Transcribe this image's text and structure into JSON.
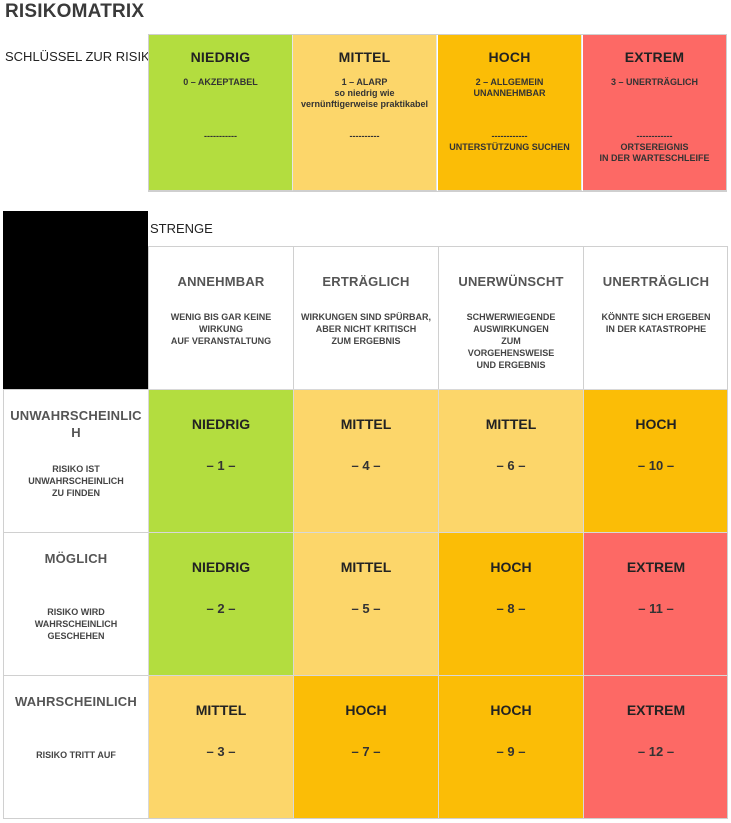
{
  "title": "RISIKOMATRIX",
  "key": {
    "label": "SCHLÜSSEL ZUR RISIKO",
    "levels": [
      {
        "name": "NIEDRIG",
        "desc": "0 – AKZEPTABEL",
        "extra": "-----------",
        "color": "#b3dd3f"
      },
      {
        "name": "MITTEL",
        "desc": "1 – ALARP\nso niedrig wie\nvernünftigerweise praktikabel",
        "extra": "----------",
        "color": "#fcd66a"
      },
      {
        "name": "HOCH",
        "desc": "2 – ALLGEMEIN\nUNANNEHMBAR",
        "extra": "------------\nUNTERSTÜTZUNG SUCHEN",
        "color": "#fbbd06"
      },
      {
        "name": "EXTREM",
        "desc": "3 – UNERTRÄGLICH",
        "extra": "------------\nORTSEREIGNIS\nIN DER WARTESCHLEIFE",
        "color": "#fd6965"
      }
    ]
  },
  "severity": {
    "label": "STRENGE",
    "columns": [
      {
        "name": "ANNEHMBAR",
        "desc": "WENIG BIS GAR KEINE\nWIRKUNG\nAUF VERANSTALTUNG"
      },
      {
        "name": "ERTRÄGLICH",
        "desc": "WIRKUNGEN SIND SPÜRBAR,\nABER NICHT KRITISCH\nZUM ERGEBNIS"
      },
      {
        "name": "UNERWÜNSCHT",
        "desc": "SCHWERWIEGENDE\nAUSWIRKUNGEN\nZUM\nVORGEHENSWEISE\nUND ERGEBNIS"
      },
      {
        "name": "UNERTRÄGLICH",
        "desc": "KÖNNTE SICH ERGEBEN\nIN DER KATASTROPHE"
      }
    ]
  },
  "likelihood": [
    {
      "name": "UNWAHRSCHEINLIC\nH",
      "desc": "RISIKO IST\nUNWAHRSCHEINLICH\nZU FINDEN",
      "cells": [
        {
          "level": "NIEDRIG",
          "num": "– 1 –",
          "color": "#b3dd3f"
        },
        {
          "level": "MITTEL",
          "num": "– 4 –",
          "color": "#fcd66a"
        },
        {
          "level": "MITTEL",
          "num": "– 6 –",
          "color": "#fcd66a"
        },
        {
          "level": "HOCH",
          "num": "– 10 –",
          "color": "#fbbd06"
        }
      ]
    },
    {
      "name": "MÖGLICH",
      "desc": "RISIKO WIRD\nWAHRSCHEINLICH\nGESCHEHEN",
      "cells": [
        {
          "level": "NIEDRIG",
          "num": "– 2 –",
          "color": "#b3dd3f"
        },
        {
          "level": "MITTEL",
          "num": "– 5 –",
          "color": "#fcd66a"
        },
        {
          "level": "HOCH",
          "num": "– 8 –",
          "color": "#fbbd06"
        },
        {
          "level": "EXTREM",
          "num": "– 11 –",
          "color": "#fd6965"
        }
      ]
    },
    {
      "name": "WAHRSCHEINLICH",
      "desc": "RISIKO TRITT AUF",
      "cells": [
        {
          "level": "MITTEL",
          "num": "– 3 –",
          "color": "#fcd66a"
        },
        {
          "level": "HOCH",
          "num": "– 7 –",
          "color": "#fbbd06"
        },
        {
          "level": "HOCH",
          "num": "– 9 –",
          "color": "#fbbd06"
        },
        {
          "level": "EXTREM",
          "num": "– 12 –",
          "color": "#fd6965"
        }
      ]
    }
  ]
}
